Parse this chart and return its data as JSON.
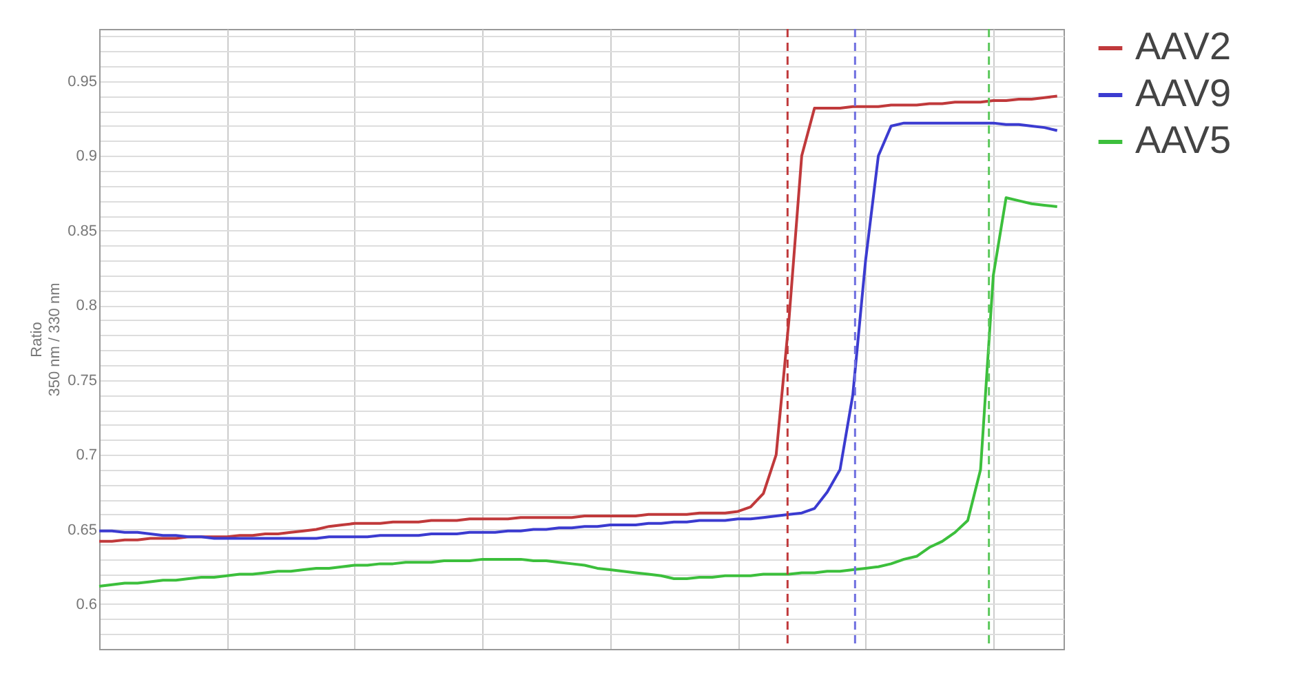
{
  "chart_data": {
    "type": "line",
    "ylabel": "Ratio\n350 nm / 330 nm",
    "categories": [
      null,
      null,
      null,
      null,
      null,
      null,
      null,
      null,
      null,
      null,
      null,
      null,
      null,
      null,
      null,
      null,
      null,
      null,
      null,
      null,
      null,
      null,
      null,
      null,
      null,
      null,
      null,
      null,
      null,
      null,
      null,
      null,
      null,
      null,
      null,
      null,
      null,
      null,
      null,
      null,
      null,
      null,
      null,
      null,
      null,
      null,
      null,
      null,
      null,
      null,
      null,
      null,
      null,
      null,
      null,
      null,
      null,
      null,
      null,
      null,
      null,
      null,
      null,
      null,
      null,
      null,
      null,
      null,
      null,
      null,
      null,
      null,
      null,
      null,
      null,
      null
    ],
    "ylim": [
      0.57,
      0.985
    ],
    "yticks": [
      {
        "value": 0.57,
        "label": null
      },
      {
        "value": 0.58,
        "label": null
      },
      {
        "value": 0.59,
        "label": null
      },
      0.6,
      {
        "value": 0.61,
        "label": null
      },
      {
        "value": 0.62,
        "label": null
      },
      {
        "value": 0.63,
        "label": null
      },
      {
        "value": 0.64,
        "label": null
      },
      0.65,
      {
        "value": 0.66,
        "label": null
      },
      {
        "value": 0.67,
        "label": null
      },
      {
        "value": 0.68,
        "label": null
      },
      {
        "value": 0.69,
        "label": null
      },
      0.7,
      {
        "value": 0.71,
        "label": null
      },
      {
        "value": 0.72,
        "label": null
      },
      {
        "value": 0.73,
        "label": null
      },
      {
        "value": 0.74,
        "label": null
      },
      0.75,
      {
        "value": 0.76,
        "label": null
      },
      {
        "value": 0.77,
        "label": null
      },
      {
        "value": 0.78,
        "label": null
      },
      {
        "value": 0.79,
        "label": null
      },
      0.8,
      {
        "value": 0.81,
        "label": null
      },
      {
        "value": 0.82,
        "label": null
      },
      {
        "value": 0.83,
        "label": null
      },
      {
        "value": 0.84,
        "label": null
      },
      0.85,
      {
        "value": 0.86,
        "label": null
      },
      {
        "value": 0.87,
        "label": null
      },
      {
        "value": 0.88,
        "label": null
      },
      {
        "value": 0.89,
        "label": null
      },
      0.9,
      {
        "value": 0.91,
        "label": null
      },
      {
        "value": 0.92,
        "label": null
      },
      {
        "value": 0.93,
        "label": null
      },
      {
        "value": 0.94,
        "label": null
      },
      0.95,
      {
        "value": 0.96,
        "label": null
      },
      {
        "value": 0.97,
        "label": null
      },
      {
        "value": 0.98,
        "label": null
      }
    ],
    "tick_labels": "y",
    "grid": true,
    "legend": "top right",
    "line_style": "solid",
    "series": [
      {
        "name": "AAV2",
        "color": "#c0393b",
        "values": [
          0.642,
          0.642,
          0.643,
          0.643,
          0.644,
          0.644,
          0.644,
          0.645,
          0.645,
          0.645,
          0.645,
          0.646,
          0.646,
          0.647,
          0.647,
          0.648,
          0.649,
          0.65,
          0.652,
          0.653,
          0.654,
          0.654,
          0.654,
          0.655,
          0.655,
          0.655,
          0.656,
          0.656,
          0.656,
          0.657,
          0.657,
          0.657,
          0.657,
          0.658,
          0.658,
          0.658,
          0.658,
          0.658,
          0.659,
          0.659,
          0.659,
          0.659,
          0.659,
          0.66,
          0.66,
          0.66,
          0.66,
          0.661,
          0.661,
          0.661,
          0.662,
          0.665,
          0.674,
          0.7,
          0.79,
          0.9,
          0.932,
          0.932,
          0.932,
          0.933,
          0.933,
          0.933,
          0.934,
          0.934,
          0.934,
          0.935,
          0.935,
          0.936,
          0.936,
          0.936,
          0.937,
          0.937,
          0.938,
          0.938,
          0.939,
          0.94
        ]
      },
      {
        "name": "AAV9",
        "color": "#3b3bd0",
        "values": [
          0.649,
          0.649,
          0.648,
          0.648,
          0.647,
          0.646,
          0.646,
          0.645,
          0.645,
          0.644,
          0.644,
          0.644,
          0.644,
          0.644,
          0.644,
          0.644,
          0.644,
          0.644,
          0.645,
          0.645,
          0.645,
          0.645,
          0.646,
          0.646,
          0.646,
          0.646,
          0.647,
          0.647,
          0.647,
          0.648,
          0.648,
          0.648,
          0.649,
          0.649,
          0.65,
          0.65,
          0.651,
          0.651,
          0.652,
          0.652,
          0.653,
          0.653,
          0.653,
          0.654,
          0.654,
          0.655,
          0.655,
          0.656,
          0.656,
          0.656,
          0.657,
          0.657,
          0.658,
          0.659,
          0.66,
          0.661,
          0.664,
          0.675,
          0.69,
          0.74,
          0.83,
          0.9,
          0.92,
          0.922,
          0.922,
          0.922,
          0.922,
          0.922,
          0.922,
          0.922,
          0.922,
          0.921,
          0.921,
          0.92,
          0.919,
          0.917
        ]
      },
      {
        "name": "AAV5",
        "color": "#3cbf3c",
        "values": [
          0.612,
          0.613,
          0.614,
          0.614,
          0.615,
          0.616,
          0.616,
          0.617,
          0.618,
          0.618,
          0.619,
          0.62,
          0.62,
          0.621,
          0.622,
          0.622,
          0.623,
          0.624,
          0.624,
          0.625,
          0.626,
          0.626,
          0.627,
          0.627,
          0.628,
          0.628,
          0.628,
          0.629,
          0.629,
          0.629,
          0.63,
          0.63,
          0.63,
          0.63,
          0.629,
          0.629,
          0.628,
          0.627,
          0.626,
          0.624,
          0.623,
          0.622,
          0.621,
          0.62,
          0.619,
          0.617,
          0.617,
          0.618,
          0.618,
          0.619,
          0.619,
          0.619,
          0.62,
          0.62,
          0.62,
          0.621,
          0.621,
          0.622,
          0.622,
          0.623,
          0.624,
          0.625,
          0.627,
          0.63,
          0.632,
          0.638,
          0.642,
          0.648,
          0.656,
          0.69,
          0.82,
          0.872,
          0.87,
          0.868,
          0.867,
          0.866
        ]
      }
    ]
  }
}
